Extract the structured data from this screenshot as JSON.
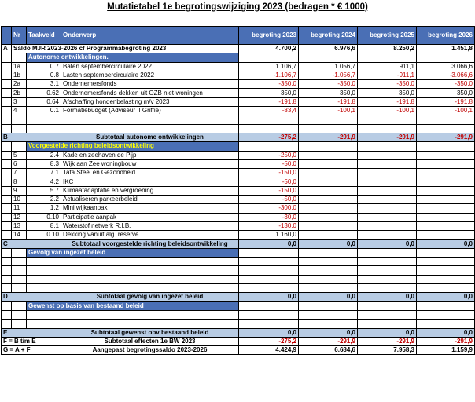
{
  "title": "Mutatietabel 1e begrotingswijziging 2023 (bedragen * € 1000)",
  "headers": {
    "code": "",
    "nr": "Nr",
    "taakveld": "Taakveld",
    "onderwerp": "Onderwerp",
    "y2023": "begroting 2023",
    "y2024": "begroting 2024",
    "y2025": "begroting 2025",
    "y2026": "begroting 2026"
  },
  "rows": [
    {
      "type": "saldo",
      "code": "A",
      "label": "Saldo MJR 2023-2026 cf Programmabegroting 2023",
      "v": [
        "4.700,2",
        "6.976,6",
        "8.250,2",
        "1.451,8"
      ]
    },
    {
      "type": "section",
      "label": "Autonome ontwikkelingen.",
      "yellow": false
    },
    {
      "type": "item",
      "nr": "1a",
      "tv": "0.7",
      "label": "Baten septembercirculaire 2022",
      "v": [
        "1.106,7",
        "1.056,7",
        "911,1",
        "3.066,6"
      ]
    },
    {
      "type": "item",
      "nr": "1b",
      "tv": "0.8",
      "label": "Lasten septembercirculaire 2022",
      "v": [
        "-1.106,7",
        "-1.056,7",
        "-911,1",
        "-3.066,6"
      ]
    },
    {
      "type": "item",
      "nr": "2a",
      "tv": "3.1",
      "label": "Ondernemersfonds",
      "v": [
        "-350,0",
        "-350,0",
        "-350,0",
        "-350,0"
      ]
    },
    {
      "type": "item",
      "nr": "2b",
      "tv": "0.62",
      "label": "Ondernemersfonds dekken uit OZB niet-woningen",
      "v": [
        "350,0",
        "350,0",
        "350,0",
        "350,0"
      ]
    },
    {
      "type": "item",
      "nr": "3",
      "tv": "0.64",
      "label": "Afschaffing hondenbelasting m/v 2023",
      "v": [
        "-191,8",
        "-191,8",
        "-191,8",
        "-191,8"
      ]
    },
    {
      "type": "item",
      "nr": "4",
      "tv": "0.1",
      "label": "Formatiebudget (Adviseur II Griffie)",
      "v": [
        "-83,4",
        "-100,1",
        "-100,1",
        "-100,1"
      ]
    },
    {
      "type": "empty"
    },
    {
      "type": "empty"
    },
    {
      "type": "subtotal",
      "code": "B",
      "label": "Subtotaal autonome ontwikkelingen",
      "v": [
        "-275,2",
        "-291,9",
        "-291,9",
        "-291,9"
      ]
    },
    {
      "type": "section",
      "label": "Voorgestelde richting beleidsontwikkeling",
      "yellow": true
    },
    {
      "type": "item",
      "nr": "5",
      "tv": "2.4",
      "label": "Kade en zeehaven de Pijp",
      "v": [
        "-250,0",
        "",
        "",
        ""
      ]
    },
    {
      "type": "item",
      "nr": "6",
      "tv": "8.3",
      "label": "Wijk aan Zee woningbouw",
      "v": [
        "-50,0",
        "",
        "",
        ""
      ]
    },
    {
      "type": "item",
      "nr": "7",
      "tv": "7.1",
      "label": "Tata Steel en Gezondheid",
      "v": [
        "-150,0",
        "",
        "",
        ""
      ]
    },
    {
      "type": "item",
      "nr": "8",
      "tv": "4.2",
      "label": "IKC",
      "v": [
        "-50,0",
        "",
        "",
        ""
      ]
    },
    {
      "type": "item",
      "nr": "9",
      "tv": "5.7",
      "label": "Klimaatadaptatie en vergroening",
      "v": [
        "-150,0",
        "",
        "",
        ""
      ]
    },
    {
      "type": "item",
      "nr": "10",
      "tv": "2.2",
      "label": "Actualiseren parkeerbeleid",
      "v": [
        "-50,0",
        "",
        "",
        ""
      ]
    },
    {
      "type": "item",
      "nr": "11",
      "tv": "1.2",
      "label": "Mini wijkaanpak",
      "v": [
        "-300,0",
        "",
        "",
        ""
      ]
    },
    {
      "type": "item",
      "nr": "12",
      "tv": "0.10",
      "label": "Participatie aanpak",
      "v": [
        "-30,0",
        "",
        "",
        ""
      ]
    },
    {
      "type": "item",
      "nr": "13",
      "tv": "8.1",
      "label": "Waterstof netwerk R.I.B.",
      "v": [
        "-130,0",
        "",
        "",
        ""
      ]
    },
    {
      "type": "item",
      "nr": "14",
      "tv": "0.10",
      "label": "Dekking vanuit alg. reserve",
      "v": [
        "1.160,0",
        "",
        "",
        ""
      ]
    },
    {
      "type": "subtotal",
      "code": "C",
      "label": "Subtotaal voorgestelde richting beleidsontwikkeling",
      "v": [
        "0,0",
        "0,0",
        "0,0",
        "0,0"
      ]
    },
    {
      "type": "section",
      "label": "Gevolg van ingezet beleid",
      "yellow": false
    },
    {
      "type": "empty"
    },
    {
      "type": "empty"
    },
    {
      "type": "empty"
    },
    {
      "type": "empty"
    },
    {
      "type": "subtotal",
      "code": "D",
      "label": "Subtotaal gevolg van ingezet beleid",
      "v": [
        "0,0",
        "0,0",
        "0,0",
        "0,0"
      ]
    },
    {
      "type": "section",
      "label": "Gewenst op basis van bestaand beleid",
      "yellow": false
    },
    {
      "type": "empty"
    },
    {
      "type": "empty"
    },
    {
      "type": "subtotal",
      "code": "E",
      "label": "Subtotaal gewenst obv bestaand beleid",
      "v": [
        "0,0",
        "0,0",
        "0,0",
        "0,0"
      ]
    },
    {
      "type": "final",
      "code": "F = B t/m E",
      "label": "Subtotaal effecten 1e BW 2023",
      "v": [
        "-275,2",
        "-291,9",
        "-291,9",
        "-291,9"
      ]
    },
    {
      "type": "final",
      "code": "G = A + F",
      "label": "Aangepast begrotingssaldo 2023-2026",
      "v": [
        "4.424,9",
        "6.684,6",
        "7.958,3",
        "1.159,9"
      ]
    }
  ]
}
